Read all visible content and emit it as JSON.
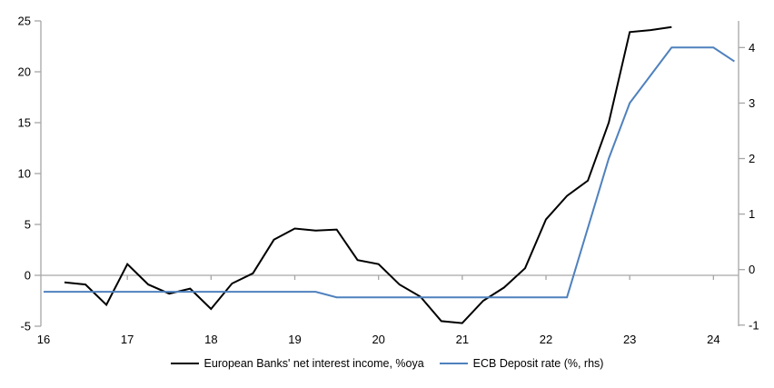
{
  "chart_data": {
    "type": "line",
    "title": "",
    "xlabel": "",
    "ylabel_left": "",
    "ylabel_right": "",
    "grid": "zero-line-only",
    "legend_position": "bottom-center",
    "axis_color": "#a6a6a6",
    "text_color": "#000000",
    "background_color": "#ffffff",
    "x_axis": {
      "min": 16,
      "max": 24.3,
      "ticks": [
        16,
        17,
        18,
        19,
        20,
        21,
        22,
        23,
        24
      ]
    },
    "y_left": {
      "min": -5,
      "max": 25,
      "ticks": [
        25,
        20,
        15,
        10,
        5,
        0,
        -5
      ]
    },
    "y_right": {
      "min": -1.02,
      "max": 4.48,
      "ticks": [
        4,
        3,
        2,
        1,
        0,
        -1
      ]
    },
    "series": [
      {
        "name": "European Banks' net interest income, %oya",
        "color": "#000000",
        "axis": "left",
        "data_name": "nii-series-line",
        "points": [
          [
            16.25,
            -0.7
          ],
          [
            16.5,
            -0.9
          ],
          [
            16.75,
            -2.9
          ],
          [
            17,
            1.1
          ],
          [
            17.25,
            -0.9
          ],
          [
            17.5,
            -1.8
          ],
          [
            17.75,
            -1.3
          ],
          [
            18,
            -3.3
          ],
          [
            18.25,
            -0.8
          ],
          [
            18.5,
            0.2
          ],
          [
            18.75,
            3.5
          ],
          [
            19,
            4.6
          ],
          [
            19.25,
            4.4
          ],
          [
            19.5,
            4.5
          ],
          [
            19.75,
            1.5
          ],
          [
            20,
            1.1
          ],
          [
            20.25,
            -0.9
          ],
          [
            20.5,
            -2.1
          ],
          [
            20.75,
            -4.5
          ],
          [
            21,
            -4.7
          ],
          [
            21.25,
            -2.5
          ],
          [
            21.5,
            -1.2
          ],
          [
            21.75,
            0.7
          ],
          [
            22,
            5.5
          ],
          [
            22.25,
            7.8
          ],
          [
            22.5,
            9.3
          ],
          [
            22.75,
            15
          ],
          [
            23,
            23.9
          ],
          [
            23.25,
            24.1
          ],
          [
            23.5,
            24.4
          ]
        ]
      },
      {
        "name": "ECB Deposit rate (%, rhs)",
        "color": "#4f81bd",
        "axis": "right",
        "data_name": "ecb-deposit-rate-line",
        "points": [
          [
            16,
            -0.4
          ],
          [
            16.25,
            -0.4
          ],
          [
            16.5,
            -0.4
          ],
          [
            16.75,
            -0.4
          ],
          [
            17,
            -0.4
          ],
          [
            17.25,
            -0.4
          ],
          [
            17.5,
            -0.4
          ],
          [
            17.75,
            -0.4
          ],
          [
            18,
            -0.4
          ],
          [
            18.25,
            -0.4
          ],
          [
            18.5,
            -0.4
          ],
          [
            18.75,
            -0.4
          ],
          [
            19,
            -0.4
          ],
          [
            19.25,
            -0.4
          ],
          [
            19.5,
            -0.5
          ],
          [
            19.75,
            -0.5
          ],
          [
            20,
            -0.5
          ],
          [
            20.25,
            -0.5
          ],
          [
            20.5,
            -0.5
          ],
          [
            20.75,
            -0.5
          ],
          [
            21,
            -0.5
          ],
          [
            21.25,
            -0.5
          ],
          [
            21.5,
            -0.5
          ],
          [
            21.75,
            -0.5
          ],
          [
            22,
            -0.5
          ],
          [
            22.25,
            -0.5
          ],
          [
            22.5,
            0.75
          ],
          [
            22.75,
            2
          ],
          [
            23,
            3
          ],
          [
            23.25,
            3.5
          ],
          [
            23.5,
            4
          ],
          [
            23.75,
            4
          ],
          [
            24,
            4
          ],
          [
            24.25,
            3.75
          ]
        ]
      }
    ]
  }
}
